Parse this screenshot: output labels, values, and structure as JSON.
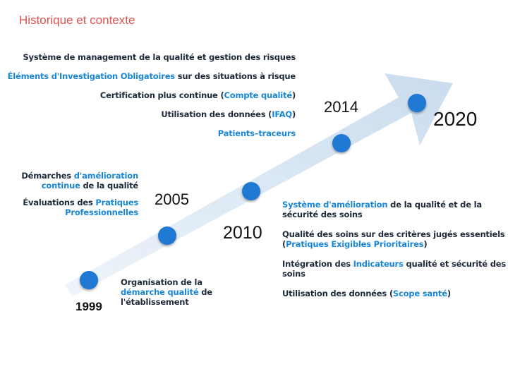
{
  "title": "Historique et contexte",
  "years": {
    "y1999": "1999",
    "y2005": "2005",
    "y2010": "2010",
    "y2014": "2014",
    "y2020": "2020"
  },
  "top_block": {
    "l1": "Système de management de la qualité et gestion des risques",
    "l2a": "Éléments d'Investigation Obligatoires",
    "l2b": " sur des situations à risque",
    "l3a": "Certification plus continue (",
    "l3b": "Compte qualité",
    "l3c": ")",
    "l4a": "Utilisation des données (",
    "l4b": "IFAQ",
    "l4c": ")",
    "l5": "Patients–traceurs"
  },
  "left_block": {
    "l1a": "Démarches ",
    "l1b": "d'amélioration",
    "l2a": "continue",
    "l2b": " de la qualité",
    "l3a": "Évaluations des ",
    "l3b": "Pratiques",
    "l4": "Professionnelles"
  },
  "bottom_block": {
    "l1": "Organisation de la",
    "l2a": "démarche qualité",
    "l2b": " de",
    "l3": "l'établissement"
  },
  "right_block": {
    "l1a": "Système d'amélioration",
    "l1b": " de la qualité et de la",
    "l2": "sécurité des soins",
    "l3": "Qualité des soins sur des critères jugés essentiels",
    "l4a": "(",
    "l4b": "Pratiques Exigibles Prioritaires",
    "l4c": ")",
    "l5a": "Intégration des ",
    "l5b": "Indicateurs",
    "l5c": " qualité et sécurité des",
    "l6": "soins",
    "l7a": "Utilisation des données (",
    "l7b": "Scope santé",
    "l7c": ")"
  },
  "colors": {
    "dot": "#1f78d1",
    "highlight": "#1a86d6",
    "title": "#e0504f",
    "arrow": "#d6e6f4"
  }
}
